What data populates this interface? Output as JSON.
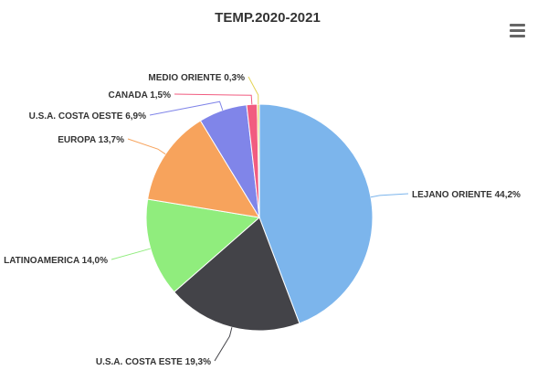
{
  "chart_data": {
    "type": "pie",
    "title": "TEMP.2020-2021",
    "legend": "none",
    "slices": [
      {
        "name": "LEJANO ORIENTE",
        "value": 44.2,
        "label": "LEJANO ORIENTE 44,2%",
        "color": "#7cb5ec"
      },
      {
        "name": "U.S.A. COSTA ESTE",
        "value": 19.3,
        "label": "U.S.A. COSTA ESTE 19,3%",
        "color": "#434348"
      },
      {
        "name": "LATINOAMERICA",
        "value": 14.0,
        "label": "LATINOAMERICA 14,0%",
        "color": "#90ed7d"
      },
      {
        "name": "EUROPA",
        "value": 13.7,
        "label": "EUROPA 13,7%",
        "color": "#f7a35c"
      },
      {
        "name": "U.S.A. COSTA OESTE",
        "value": 6.9,
        "label": "U.S.A. COSTA OESTE 6,9%",
        "color": "#8085e9"
      },
      {
        "name": "CANADA",
        "value": 1.5,
        "label": "CANADA 1,5%",
        "color": "#f15c80"
      },
      {
        "name": "MEDIO ORIENTE",
        "value": 0.3,
        "label": "MEDIO ORIENTE 0,3%",
        "color": "#e4d354"
      }
    ]
  },
  "menu": {
    "icon": "hamburger-menu-icon"
  }
}
